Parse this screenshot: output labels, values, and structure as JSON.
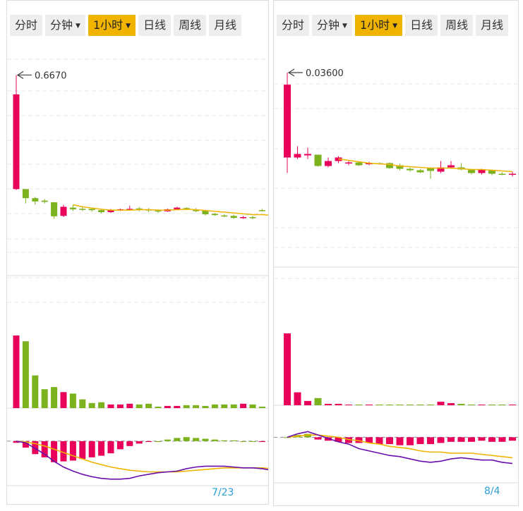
{
  "colors": {
    "up": "#e8005a",
    "down": "#7cb21e",
    "ma": "#f0b400",
    "dea": "#f0b400",
    "dif": "#6a0dad",
    "grid": "#e8e8e8",
    "date": "#2a9fd6",
    "tab_active": "#f0b400",
    "tab_bg": "#eeeeee"
  },
  "panels": [
    {
      "tabs": [
        {
          "label": "分时",
          "active": false,
          "has_dropdown": false
        },
        {
          "label": "分钟",
          "active": false,
          "has_dropdown": true
        },
        {
          "label": "1小时",
          "active": true,
          "has_dropdown": true
        },
        {
          "label": "日线",
          "active": false,
          "has_dropdown": false
        },
        {
          "label": "周线",
          "active": false,
          "has_dropdown": false
        },
        {
          "label": "月线",
          "active": false,
          "has_dropdown": false
        }
      ],
      "chart_data": {
        "type": "candlestick",
        "max_label": "0.6670",
        "date_label": "7/23",
        "price_range": [
          0.18,
          0.69
        ],
        "candles": [
          {
            "o": 0.39,
            "c": 0.62,
            "h": 0.667,
            "l": 0.388
          },
          {
            "o": 0.39,
            "c": 0.368,
            "h": 0.39,
            "l": 0.355
          },
          {
            "o": 0.368,
            "c": 0.36,
            "h": 0.371,
            "l": 0.352
          },
          {
            "o": 0.362,
            "c": 0.359,
            "h": 0.366,
            "l": 0.355
          },
          {
            "o": 0.358,
            "c": 0.324,
            "h": 0.359,
            "l": 0.318
          },
          {
            "o": 0.325,
            "c": 0.347,
            "h": 0.352,
            "l": 0.322
          },
          {
            "o": 0.345,
            "c": 0.341,
            "h": 0.352,
            "l": 0.337
          },
          {
            "o": 0.342,
            "c": 0.341,
            "h": 0.346,
            "l": 0.337
          },
          {
            "o": 0.342,
            "c": 0.339,
            "h": 0.343,
            "l": 0.335
          },
          {
            "o": 0.339,
            "c": 0.334,
            "h": 0.342,
            "l": 0.331
          },
          {
            "o": 0.334,
            "c": 0.339,
            "h": 0.342,
            "l": 0.332
          },
          {
            "o": 0.339,
            "c": 0.341,
            "h": 0.343,
            "l": 0.337
          },
          {
            "o": 0.341,
            "c": 0.342,
            "h": 0.35,
            "l": 0.338
          },
          {
            "o": 0.343,
            "c": 0.341,
            "h": 0.347,
            "l": 0.336
          },
          {
            "o": 0.341,
            "c": 0.338,
            "h": 0.344,
            "l": 0.334
          },
          {
            "o": 0.338,
            "c": 0.336,
            "h": 0.341,
            "l": 0.332
          },
          {
            "o": 0.336,
            "c": 0.341,
            "h": 0.343,
            "l": 0.335
          },
          {
            "o": 0.341,
            "c": 0.345,
            "h": 0.347,
            "l": 0.339
          },
          {
            "o": 0.344,
            "c": 0.341,
            "h": 0.346,
            "l": 0.339
          },
          {
            "o": 0.339,
            "c": 0.338,
            "h": 0.344,
            "l": 0.334
          },
          {
            "o": 0.338,
            "c": 0.329,
            "h": 0.34,
            "l": 0.326
          },
          {
            "o": 0.33,
            "c": 0.327,
            "h": 0.332,
            "l": 0.325
          },
          {
            "o": 0.326,
            "c": 0.324,
            "h": 0.329,
            "l": 0.322
          },
          {
            "o": 0.325,
            "c": 0.32,
            "h": 0.328,
            "l": 0.318
          },
          {
            "o": 0.32,
            "c": 0.322,
            "h": 0.325,
            "l": 0.318
          },
          {
            "o": 0.322,
            "c": 0.32,
            "h": 0.325,
            "l": 0.317
          },
          {
            "o": 0.339,
            "c": 0.338,
            "h": 0.342,
            "l": 0.336
          },
          {
            "o": 0.318,
            "c": 0.305,
            "h": 0.319,
            "l": 0.302
          }
        ],
        "ma": {
          "start": 6,
          "values": [
            0.352,
            0.347,
            0.344,
            0.341,
            0.339,
            0.339,
            0.339,
            0.34,
            0.34,
            0.339,
            0.339,
            0.34,
            0.341,
            0.34,
            0.338,
            0.336,
            0.334,
            0.332,
            0.33,
            0.328,
            0.328,
            0.326
          ]
        },
        "volume": [
          1.0,
          0.92,
          0.45,
          0.26,
          0.29,
          0.22,
          0.2,
          0.12,
          0.07,
          0.08,
          0.05,
          0.05,
          0.06,
          0.05,
          0.06,
          0.02,
          0.03,
          0.03,
          0.04,
          0.04,
          0.03,
          0.05,
          0.05,
          0.05,
          0.06,
          0.05,
          0.02,
          0.22
        ],
        "macd": {
          "range": [
            -0.055,
            0.02
          ],
          "hist": [
            -0.002,
            -0.008,
            -0.016,
            -0.02,
            -0.026,
            -0.025,
            -0.024,
            -0.022,
            -0.02,
            -0.018,
            -0.015,
            -0.01,
            -0.006,
            -0.003,
            -0.001,
            0.0,
            0.002,
            0.004,
            0.005,
            0.004,
            0.003,
            0.002,
            0.001,
            0.001,
            0.0,
            0.0,
            -0.001,
            -0.003
          ],
          "dif": [
            0.0,
            -0.002,
            -0.009,
            -0.016,
            -0.025,
            -0.032,
            -0.037,
            -0.041,
            -0.044,
            -0.046,
            -0.047,
            -0.047,
            -0.046,
            -0.043,
            -0.041,
            -0.039,
            -0.038,
            -0.037,
            -0.034,
            -0.032,
            -0.031,
            -0.031,
            -0.031,
            -0.032,
            -0.033,
            -0.033,
            -0.034,
            -0.036
          ],
          "dea": [
            0.0,
            -0.001,
            -0.003,
            -0.006,
            -0.01,
            -0.014,
            -0.018,
            -0.022,
            -0.026,
            -0.029,
            -0.032,
            -0.034,
            -0.036,
            -0.037,
            -0.038,
            -0.038,
            -0.038,
            -0.038,
            -0.037,
            -0.036,
            -0.035,
            -0.034,
            -0.033,
            -0.033,
            -0.033,
            -0.033,
            -0.033,
            -0.034
          ]
        }
      }
    },
    {
      "tabs": [
        {
          "label": "分时",
          "active": false,
          "has_dropdown": false
        },
        {
          "label": "分钟",
          "active": false,
          "has_dropdown": true
        },
        {
          "label": "1小时",
          "active": true,
          "has_dropdown": true
        },
        {
          "label": "日线",
          "active": false,
          "has_dropdown": false
        },
        {
          "label": "周线",
          "active": false,
          "has_dropdown": false
        },
        {
          "label": "月线",
          "active": false,
          "has_dropdown": false
        }
      ],
      "chart_data": {
        "type": "candlestick",
        "max_label": "0.03600",
        "date_label": "8/4",
        "price_range": [
          0.0085,
          0.037
        ],
        "candles": [
          {
            "o": 0.024,
            "c": 0.0343,
            "h": 0.036,
            "l": 0.0218
          },
          {
            "o": 0.024,
            "c": 0.0245,
            "h": 0.0256,
            "l": 0.0238
          },
          {
            "o": 0.0243,
            "c": 0.0245,
            "h": 0.0254,
            "l": 0.0238
          },
          {
            "o": 0.0244,
            "c": 0.0228,
            "h": 0.0244,
            "l": 0.0227
          },
          {
            "o": 0.0228,
            "c": 0.0235,
            "h": 0.024,
            "l": 0.0226
          },
          {
            "o": 0.0235,
            "c": 0.024,
            "h": 0.0242,
            "l": 0.0232
          },
          {
            "o": 0.0233,
            "c": 0.0233,
            "h": 0.0235,
            "l": 0.0229
          },
          {
            "o": 0.0233,
            "c": 0.0229,
            "h": 0.0234,
            "l": 0.0228
          },
          {
            "o": 0.0231,
            "c": 0.0232,
            "h": 0.0234,
            "l": 0.0229
          },
          {
            "o": 0.0232,
            "c": 0.0231,
            "h": 0.0233,
            "l": 0.023
          },
          {
            "o": 0.0232,
            "c": 0.0225,
            "h": 0.0233,
            "l": 0.0224
          },
          {
            "o": 0.0229,
            "c": 0.0224,
            "h": 0.0231,
            "l": 0.0222
          },
          {
            "o": 0.0224,
            "c": 0.0222,
            "h": 0.0226,
            "l": 0.022
          },
          {
            "o": 0.0222,
            "c": 0.0219,
            "h": 0.0224,
            "l": 0.0218
          },
          {
            "o": 0.0225,
            "c": 0.0221,
            "h": 0.0226,
            "l": 0.021
          },
          {
            "o": 0.022,
            "c": 0.0226,
            "h": 0.0235,
            "l": 0.0218
          },
          {
            "o": 0.0226,
            "c": 0.0229,
            "h": 0.0235,
            "l": 0.0224
          },
          {
            "o": 0.0226,
            "c": 0.0223,
            "h": 0.0232,
            "l": 0.0222
          },
          {
            "o": 0.0223,
            "c": 0.0218,
            "h": 0.0224,
            "l": 0.0216
          },
          {
            "o": 0.0218,
            "c": 0.0223,
            "h": 0.0224,
            "l": 0.0216
          },
          {
            "o": 0.0222,
            "c": 0.0217,
            "h": 0.0223,
            "l": 0.0215
          },
          {
            "o": 0.0217,
            "c": 0.0216,
            "h": 0.0219,
            "l": 0.0215
          },
          {
            "o": 0.0216,
            "c": 0.0217,
            "h": 0.022,
            "l": 0.0213
          }
        ],
        "ma": {
          "start": 5,
          "values": [
            0.0238,
            0.0236,
            0.0234,
            0.0232,
            0.0231,
            0.023,
            0.0228,
            0.0227,
            0.0226,
            0.0225,
            0.0225,
            0.0225,
            0.0224,
            0.0223,
            0.0223,
            0.0222,
            0.0221,
            0.022
          ]
        },
        "volume": [
          1.0,
          0.18,
          0.06,
          0.1,
          0.02,
          0.02,
          0.01,
          0.01,
          0.01,
          0.01,
          0.01,
          0.01,
          0.01,
          0.01,
          0.01,
          0.05,
          0.03,
          0.02,
          0.01,
          0.01,
          0.01,
          0.01,
          0.01
        ],
        "macd": {
          "range": [
            -0.004,
            0.0012
          ],
          "hist": [
            0.0,
            0.0002,
            0.0003,
            -0.0002,
            -0.0003,
            -0.0004,
            -0.0005,
            -0.0005,
            -0.0005,
            -0.0006,
            -0.0006,
            -0.0007,
            -0.0007,
            -0.0006,
            -0.0006,
            -0.0005,
            -0.0004,
            -0.0004,
            -0.0004,
            -0.0003,
            -0.0004,
            -0.0004,
            -0.0003
          ],
          "dif": [
            0.0,
            0.0003,
            0.0005,
            0.0002,
            -0.0001,
            -0.0004,
            -0.0006,
            -0.001,
            -0.0012,
            -0.0014,
            -0.0016,
            -0.0017,
            -0.0019,
            -0.0021,
            -0.0022,
            -0.0021,
            -0.0019,
            -0.0018,
            -0.0019,
            -0.002,
            -0.002,
            -0.0022,
            -0.0023
          ],
          "dea": [
            0.0,
            0.0001,
            0.0002,
            0.0002,
            0.0001,
            0.0,
            -0.0002,
            -0.0003,
            -0.0005,
            -0.0006,
            -0.0008,
            -0.0009,
            -0.001,
            -0.0012,
            -0.0013,
            -0.0013,
            -0.0014,
            -0.0014,
            -0.0014,
            -0.0015,
            -0.0016,
            -0.0017,
            -0.0018
          ]
        }
      }
    }
  ]
}
